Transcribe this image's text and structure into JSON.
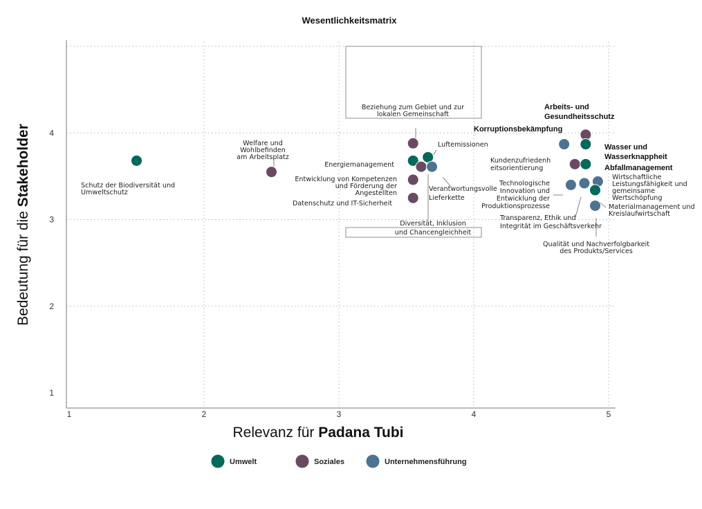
{
  "chart_data": {
    "type": "scatter",
    "title": "Wesentlichkeitsmatrix",
    "xlabel_prefix": "Relevanz für ",
    "xlabel_bold": "Padana Tubi",
    "ylabel_prefix": "Bedeutung für die ",
    "ylabel_bold": "Stakeholder",
    "xlim": [
      1,
      5
    ],
    "ylim": [
      1,
      5
    ],
    "x_ticks": [
      "1",
      "2",
      "3",
      "4",
      "5"
    ],
    "y_ticks": [
      "1",
      "2",
      "3",
      "4"
    ],
    "grid": true,
    "legend_position": "bottom",
    "categories": [
      {
        "name": "Umwelt",
        "color": "#006a5b"
      },
      {
        "name": "Soziales",
        "color": "#6a4a63"
      },
      {
        "name": "Unternehmensführung",
        "color": "#4d7390"
      }
    ],
    "points": [
      {
        "cat": 0,
        "x": 1.5,
        "y": 3.68,
        "label": [
          "Schutz der Biodiversität und",
          "Umweltschutz"
        ]
      },
      {
        "cat": 1,
        "x": 2.5,
        "y": 3.55,
        "label": [
          "Welfare und",
          "Wohlbefinden",
          "am Arbeitsplatz"
        ]
      },
      {
        "cat": 1,
        "x": 3.55,
        "y": 3.88,
        "label": [
          "Beziehung zum Gebiet und zur",
          "lokalen Gemeinschaft"
        ]
      },
      {
        "cat": 0,
        "x": 3.66,
        "y": 3.72,
        "label": [
          "Luftemissionen"
        ]
      },
      {
        "cat": 0,
        "x": 3.55,
        "y": 3.68,
        "label": [
          "Energiemanagement"
        ]
      },
      {
        "cat": 1,
        "x": 3.55,
        "y": 3.46,
        "label": [
          "Entwicklung von Kompetenzen",
          "und Förderung der",
          "Angestellten"
        ]
      },
      {
        "cat": 1,
        "x": 3.61,
        "y": 3.61,
        "label": [
          "Diversität, Inklusion",
          "und Chancengleichheit"
        ]
      },
      {
        "cat": 2,
        "x": 3.69,
        "y": 3.61,
        "label": [
          "Verantwortungsvolle",
          "Lieferkette"
        ]
      },
      {
        "cat": 1,
        "x": 3.55,
        "y": 3.25,
        "label": [
          "Datenschutz und IT-Sicherheit"
        ]
      },
      {
        "cat": 1,
        "x": 4.83,
        "y": 3.98,
        "label": [
          "Arbeits- und",
          "Gesundheitsschutz"
        ]
      },
      {
        "cat": 2,
        "x": 4.67,
        "y": 3.87,
        "label": [
          "Korruptionsbekämpfung"
        ]
      },
      {
        "cat": 0,
        "x": 4.83,
        "y": 3.87,
        "label": [
          "Wasser und",
          "Wasserknappheit"
        ]
      },
      {
        "cat": 1,
        "x": 4.75,
        "y": 3.64,
        "label": [
          "Kundenzufriedenh",
          "eitsorientierung"
        ]
      },
      {
        "cat": 0,
        "x": 4.83,
        "y": 3.64,
        "label": [
          "Abfallmanagement"
        ]
      },
      {
        "cat": 2,
        "x": 4.72,
        "y": 3.4,
        "label": [
          "Technologische",
          "Innovation und",
          "Entwicklung der",
          "Produktionsprozesse"
        ]
      },
      {
        "cat": 2,
        "x": 4.82,
        "y": 3.42,
        "label": [
          "Transparenz, Ethik und",
          "Integrität im Geschäftsverkehr"
        ]
      },
      {
        "cat": 2,
        "x": 4.92,
        "y": 3.44,
        "label": [
          "Wirtschaftliche",
          "Leistungsfähigkeit und",
          "gemeinsame",
          "Wertschöpfung"
        ]
      },
      {
        "cat": 0,
        "x": 4.9,
        "y": 3.34,
        "label": [
          "Materialmanagement und",
          "Kreislaufwirtschaft"
        ]
      },
      {
        "cat": 2,
        "x": 4.9,
        "y": 3.16,
        "label": [
          "Qualität und Nachverfolgbarkeit",
          "des Produkts/Services"
        ]
      }
    ]
  }
}
